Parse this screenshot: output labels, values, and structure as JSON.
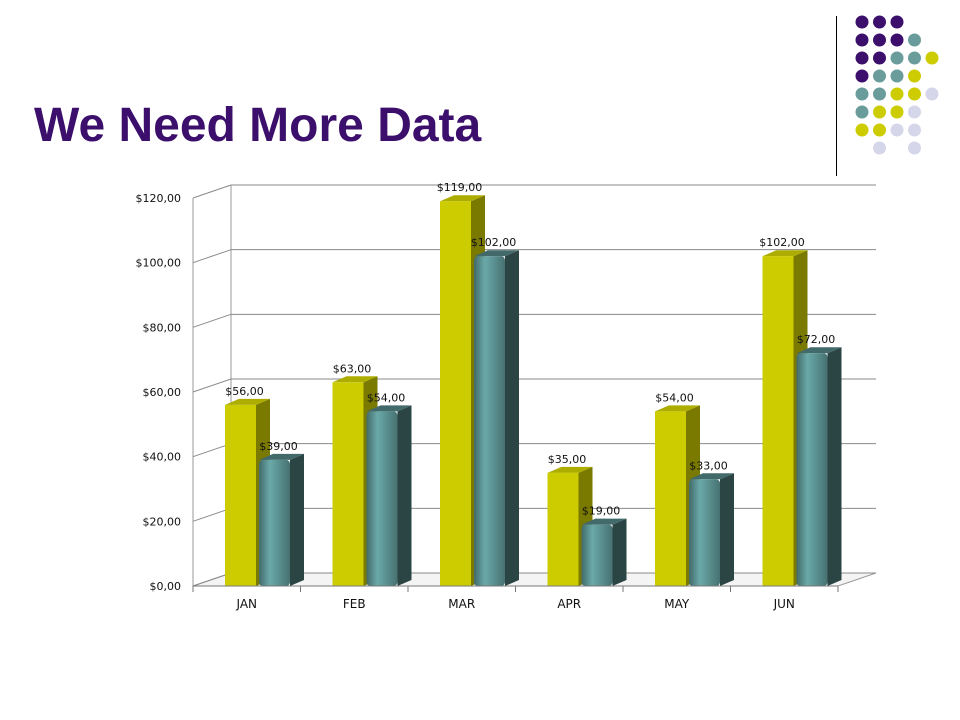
{
  "slide": {
    "title": "We Need More Data"
  },
  "decoration": {
    "dot_colors": {
      "purple": "#3b0f6b",
      "teal": "#6b9c9c",
      "yellow": "#cccc00",
      "lavender": "#d6d6ea"
    },
    "dot_rows": [
      [
        "purple",
        "purple",
        "purple",
        "",
        "",
        ""
      ],
      [
        "purple",
        "purple",
        "purple",
        "teal",
        "",
        ""
      ],
      [
        "purple",
        "purple",
        "teal",
        "teal",
        "yellow",
        ""
      ],
      [
        "purple",
        "teal",
        "teal",
        "yellow",
        "",
        ""
      ],
      [
        "teal",
        "teal",
        "yellow",
        "yellow",
        "lavender",
        ""
      ],
      [
        "teal",
        "yellow",
        "yellow",
        "lavender",
        "",
        ""
      ],
      [
        "yellow",
        "yellow",
        "lavender",
        "lavender",
        "",
        ""
      ],
      [
        "",
        "lavender",
        "",
        "lavender",
        "",
        ""
      ]
    ]
  },
  "chart_data": {
    "type": "bar",
    "title": "",
    "xlabel": "",
    "ylabel": "",
    "ylim": [
      0,
      120
    ],
    "ytick_step": 20,
    "ytick_labels": [
      "$0,00",
      "$20,00",
      "$40,00",
      "$60,00",
      "$80,00",
      "$100,00",
      "$120,00"
    ],
    "grid": true,
    "legend": "none",
    "categories": [
      "JAN",
      "FEB",
      "MAR",
      "APR",
      "MAY",
      "JUN"
    ],
    "series": [
      {
        "color": "#cccc00",
        "values": [
          56,
          63,
          119,
          35,
          54,
          102
        ],
        "labels": [
          "$56,00",
          "$63,00",
          "$119,00",
          "$35,00",
          "$54,00",
          "$102,00"
        ]
      },
      {
        "color": "#5f9797",
        "values": [
          39,
          54,
          102,
          19,
          33,
          72
        ],
        "labels": [
          "$39,00",
          "$54,00",
          "$102,00",
          "$19,00",
          "$33,00",
          "$72,00"
        ]
      }
    ]
  }
}
